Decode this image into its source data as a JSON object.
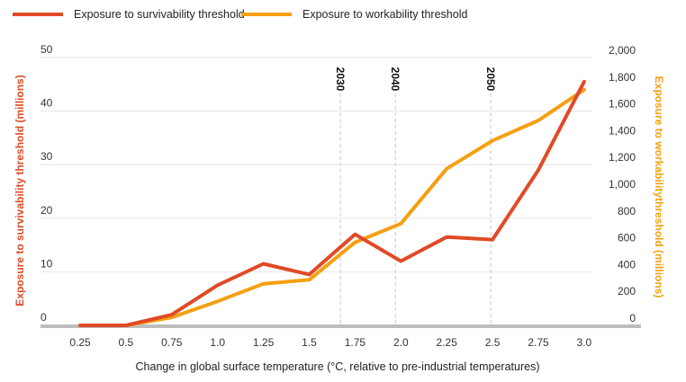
{
  "chart_data": {
    "type": "line",
    "title": "",
    "xlabel": "Change in global surface temperature (°C, relative to pre-industrial temperatures)",
    "ylabel_left": "Exposure to survivability threshold (millions)",
    "ylabel_right": "Exposure to workabilitythreshold (millions)",
    "x": [
      "0.25",
      "0.5",
      "0.75",
      "1.0",
      "1.25",
      "1.5",
      "1.75",
      "2.0",
      "2.25",
      "2.5",
      "2.75",
      "3.0"
    ],
    "ylim_left": [
      0,
      50
    ],
    "yticks_left": [
      "0",
      "10",
      "20",
      "30",
      "40",
      "50"
    ],
    "ylim_right": [
      0,
      2000
    ],
    "yticks_right": [
      "0",
      "200",
      "400",
      "600",
      "800",
      "1,000",
      "1,200",
      "1,400",
      "1,600",
      "1,800",
      "2,000"
    ],
    "series": [
      {
        "name": "Exposure to survivability threshold",
        "axis": "left",
        "color": "#e04a26",
        "values": [
          0,
          0,
          2,
          7.5,
          11.5,
          9.5,
          17,
          12,
          16.5,
          16,
          29,
          45.5
        ]
      },
      {
        "name": "Exposure to workability threshold",
        "axis": "right",
        "color": "#f4a011",
        "values": [
          0,
          0,
          60,
          180,
          310,
          340,
          620,
          760,
          1170,
          1380,
          1530,
          1760
        ]
      }
    ],
    "annotations": [
      {
        "label": "2030",
        "x": 1.67
      },
      {
        "label": "2040",
        "x": 1.97
      },
      {
        "label": "2050",
        "x": 2.49
      }
    ],
    "legend_position": "top-left",
    "grid": true
  }
}
